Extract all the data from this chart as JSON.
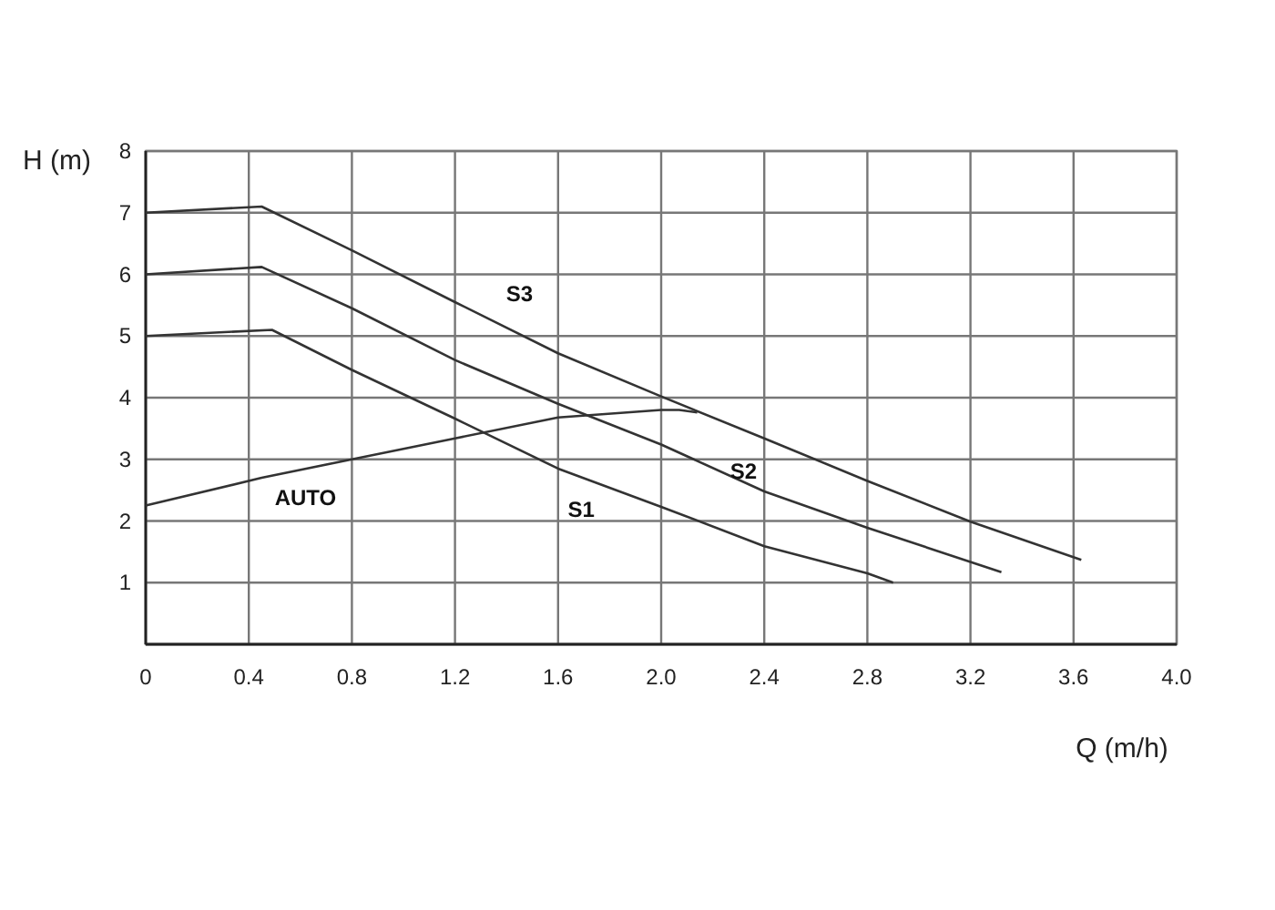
{
  "chart_data": {
    "type": "line",
    "xlabel": "Q (m/h)",
    "ylabel": "H (m)",
    "xlim": [
      0,
      4.0
    ],
    "ylim": [
      0,
      8
    ],
    "xticks": [
      {
        "value": 0,
        "label": "0"
      },
      0.4,
      0.8,
      1.2,
      1.6,
      {
        "value": 2,
        "label": "2.0"
      },
      2.4,
      2.8,
      3.2,
      3.6,
      {
        "value": 4,
        "label": "4.0"
      }
    ],
    "yticks": [
      {
        "value": 0,
        "label": null
      },
      1,
      2,
      3,
      4,
      5,
      6,
      7,
      8
    ],
    "grid": true,
    "marker": "none",
    "line_style": "solid",
    "series": [
      {
        "name": "S3",
        "color": "#333333",
        "x": [
          0,
          0.45,
          0.8,
          1.2,
          1.6,
          2.0,
          2.4,
          2.8,
          3.2,
          3.63
        ],
        "values": [
          7,
          7.1,
          6.39,
          5.55,
          4.72,
          4.02,
          3.34,
          2.65,
          1.99,
          1.37
        ]
      },
      {
        "name": "S2",
        "color": "#333333",
        "x": [
          0,
          0.45,
          0.8,
          1.2,
          1.6,
          2.0,
          2.4,
          2.8,
          3.32
        ],
        "values": [
          6,
          6.12,
          5.45,
          4.61,
          3.9,
          3.24,
          2.48,
          1.89,
          1.17
        ]
      },
      {
        "name": "S1",
        "color": "#333333",
        "x": [
          0,
          0.49,
          0.8,
          1.2,
          1.6,
          2.0,
          2.4,
          2.8,
          2.9
        ],
        "values": [
          5,
          5.1,
          4.45,
          3.66,
          2.85,
          2.23,
          1.59,
          1.15,
          1.0
        ]
      },
      {
        "name": "AUTO",
        "color": "#333333",
        "x": [
          0,
          0.45,
          0.8,
          1.2,
          1.6,
          1.77,
          2.0,
          2.07,
          2.14
        ],
        "values": [
          2.25,
          2.7,
          3.0,
          3.34,
          3.68,
          3.73,
          3.8,
          3.8,
          3.76
        ]
      }
    ]
  }
}
